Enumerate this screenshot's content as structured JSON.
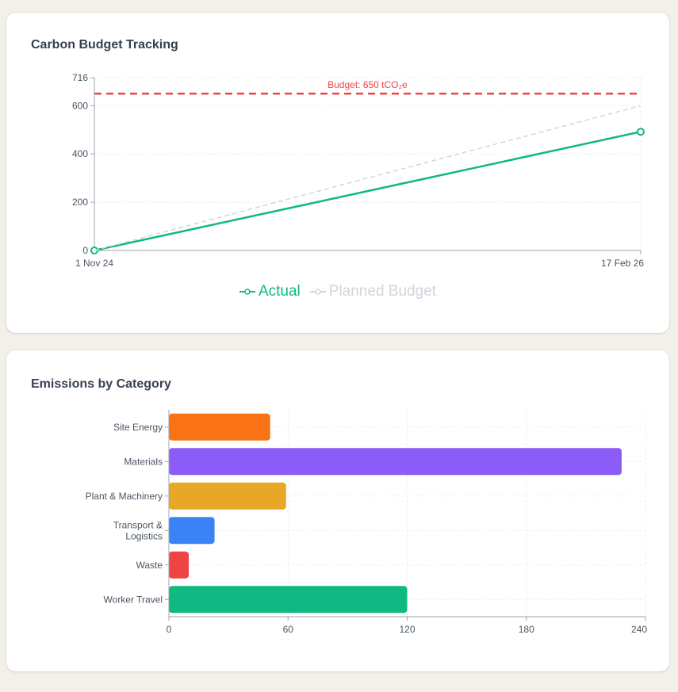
{
  "line_card": {
    "title": "Carbon Budget Tracking",
    "budget_label": "Budget: 650 tCO₂e"
  },
  "bar_card": {
    "title": "Emissions by Category"
  },
  "colors": {
    "actual": "#10b981",
    "planned": "#d1d5db",
    "budget": "#ef4444"
  },
  "chart_data": [
    {
      "type": "line",
      "title": "Carbon Budget Tracking",
      "x": [
        "1 Nov 24",
        "17 Feb 26"
      ],
      "x_tick_labels": [
        "1 Nov 24",
        "17 Feb 26"
      ],
      "y_ticks": [
        0,
        200,
        400,
        600,
        716
      ],
      "ylim": [
        0,
        716
      ],
      "series": [
        {
          "name": "Actual",
          "values": [
            0,
            492
          ],
          "color": "#10b981",
          "style": "solid"
        },
        {
          "name": "Planned Budget",
          "values": [
            0,
            600
          ],
          "color": "#d1d5db",
          "style": "dashed"
        }
      ],
      "reference_line": {
        "label": "Budget: 650 tCO₂e",
        "value": 650,
        "color": "#ef4444"
      },
      "grid": true,
      "legend": "bottom-center"
    },
    {
      "type": "bar",
      "orientation": "horizontal",
      "title": "Emissions by Category",
      "categories": [
        [
          "Site Energy"
        ],
        [
          "Materials"
        ],
        [
          "Plant & Machinery"
        ],
        [
          "Transport &",
          "Logistics"
        ],
        [
          "Waste"
        ],
        [
          "Worker Travel"
        ]
      ],
      "values": [
        51,
        228,
        59,
        23,
        10,
        120
      ],
      "colors": [
        "#f97316",
        "#8b5cf6",
        "#e8a726",
        "#3b82f6",
        "#ef4444",
        "#10b981"
      ],
      "xlim": [
        0,
        240
      ],
      "x_ticks": [
        0,
        60,
        120,
        180,
        240
      ],
      "grid": true
    }
  ]
}
